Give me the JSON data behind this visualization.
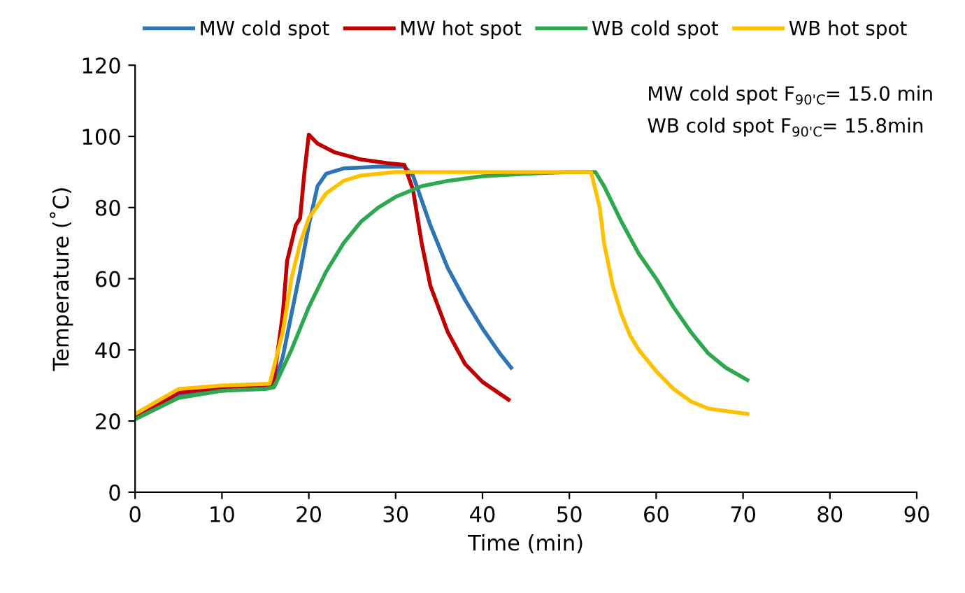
{
  "chart_data": {
    "type": "line",
    "xlabel": "Time (min)",
    "ylabel": "Temperature (˚C)",
    "xlim": [
      0,
      90
    ],
    "ylim": [
      0,
      120
    ],
    "xticks": [
      0,
      10,
      20,
      30,
      40,
      50,
      60,
      70,
      80,
      90
    ],
    "yticks": [
      0,
      20,
      40,
      60,
      80,
      100,
      120
    ],
    "grid": false,
    "legend": "top",
    "line_style": "solid",
    "marker": "none",
    "annotations": [
      "MW cold spot F$_{90'C}$= 15.0 min",
      "WB cold spot F$_{90'C}$= 15.8min"
    ],
    "series": [
      {
        "name": "MW cold spot",
        "color": "#2e75b6",
        "x": [
          0,
          2,
          5,
          10,
          15,
          16,
          17,
          18,
          19,
          20,
          21,
          22,
          24,
          28,
          31,
          32,
          34,
          36,
          38,
          40,
          42,
          43.3
        ],
        "values": [
          21,
          24,
          27,
          28.5,
          29.5,
          30,
          38,
          50,
          62,
          75,
          86,
          89.5,
          91,
          91.5,
          91.5,
          89,
          75,
          63,
          54,
          46,
          39,
          35
        ]
      },
      {
        "name": "MW hot spot",
        "color": "#c00000",
        "x": [
          0,
          5,
          10,
          15.5,
          16,
          17,
          17.5,
          18.5,
          19,
          19.5,
          20,
          21,
          23,
          26,
          29,
          31,
          32,
          33,
          34,
          36,
          38,
          40,
          43
        ],
        "values": [
          21,
          28,
          29.5,
          30,
          32,
          50,
          65,
          75,
          77,
          90,
          100.5,
          98,
          95.5,
          93.5,
          92.5,
          92,
          85,
          70,
          58,
          45,
          36,
          31,
          26
        ]
      },
      {
        "name": "WB cold spot",
        "color": "#2ea84f",
        "x": [
          0,
          5,
          10,
          15,
          16,
          18,
          20,
          22,
          24,
          26,
          28,
          30,
          33,
          36,
          40,
          45,
          50,
          53,
          54,
          56,
          58,
          60,
          62,
          64,
          66,
          68,
          70.5
        ],
        "values": [
          20.5,
          26.5,
          28.5,
          29,
          29.5,
          40,
          52,
          62,
          70,
          76,
          80,
          83,
          86,
          87.5,
          88.8,
          89.5,
          90,
          90,
          86,
          76,
          67,
          60,
          52,
          45,
          39,
          35,
          31.5
        ]
      },
      {
        "name": "WB hot spot",
        "color": "#ffc000",
        "x": [
          0,
          5,
          10,
          15.5,
          17,
          18,
          19,
          20,
          22,
          24,
          26,
          30,
          40,
          52.5,
          53.5,
          54,
          55,
          56,
          57,
          58,
          60,
          62,
          64,
          66,
          70.5
        ],
        "values": [
          22,
          29,
          30,
          30.5,
          45,
          60,
          70,
          77,
          84,
          87.5,
          89,
          90,
          90,
          90,
          80,
          70,
          58,
          50,
          44,
          40,
          34,
          29,
          25.5,
          23.5,
          22
        ]
      }
    ]
  }
}
